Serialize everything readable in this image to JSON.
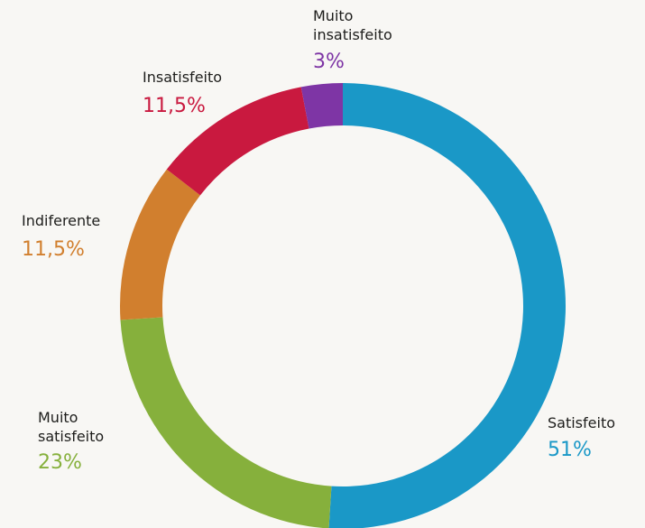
{
  "chart_data": {
    "type": "donut",
    "categories": [
      "Satisfeito",
      "Muito satisfeito",
      "Indiferente",
      "Insatisfeito",
      "Muito insatisfeito"
    ],
    "values": [
      51,
      23,
      11.5,
      11.5,
      3
    ],
    "value_labels": [
      "51%",
      "23%",
      "11,5%",
      "11,5%",
      "3%"
    ],
    "colors": [
      "#1a98c7",
      "#86b03c",
      "#d17f2e",
      "#c9193f",
      "#7e35a5"
    ]
  }
}
